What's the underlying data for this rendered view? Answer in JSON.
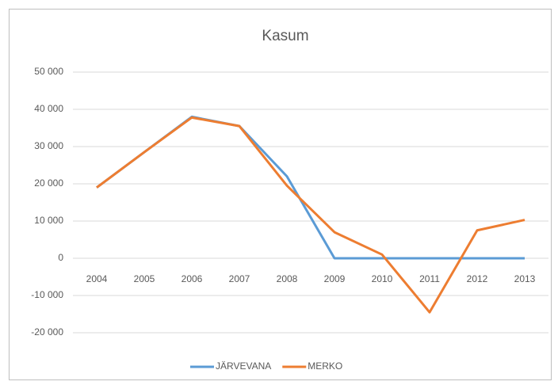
{
  "chart_data": {
    "type": "line",
    "title": "Kasum",
    "categories": [
      "2004",
      "2005",
      "2006",
      "2007",
      "2008",
      "2009",
      "2010",
      "2011",
      "2012",
      "2013"
    ],
    "series": [
      {
        "name": "JÄRVEVANA",
        "color": "#5b9bd5",
        "values": [
          19000,
          28500,
          38000,
          35500,
          22000,
          0,
          0,
          0,
          0,
          0
        ]
      },
      {
        "name": "MERKO",
        "color": "#ed7d31",
        "values": [
          19000,
          28500,
          37800,
          35500,
          19500,
          7000,
          1000,
          -14500,
          7500,
          10300
        ]
      }
    ],
    "ylim": [
      -20000,
      50000
    ],
    "yticks": [
      {
        "value": -20000,
        "label": "-20 000"
      },
      {
        "value": -10000,
        "label": "-10 000"
      },
      0,
      {
        "value": 10000,
        "label": "10 000"
      },
      {
        "value": 20000,
        "label": "20 000"
      },
      {
        "value": 30000,
        "label": "30 000"
      },
      {
        "value": 40000,
        "label": "40 000"
      },
      {
        "value": 50000,
        "label": "50 000"
      }
    ],
    "grid": true,
    "legend": "bottom"
  }
}
